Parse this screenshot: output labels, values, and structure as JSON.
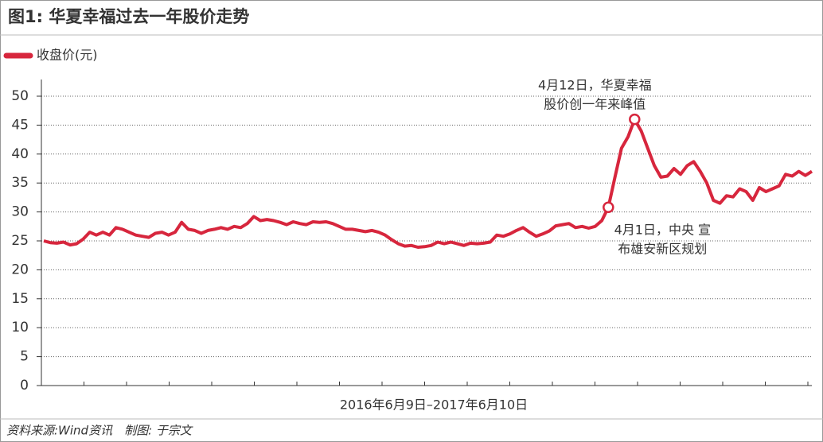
{
  "chart_data": {
    "type": "line",
    "title": "图1: 华夏幸福过去一年股价走势",
    "x_label": "2016年6月9日–2017年6月10日",
    "source": "资料来源:Wind资讯　制图: 于宗文",
    "series": [
      {
        "name": "收盘价(元)",
        "color": "#d7263d",
        "values": [
          25,
          24.7,
          24.6,
          24.8,
          24.3,
          24.5,
          25.3,
          26.5,
          26,
          26.5,
          26,
          27.3,
          27,
          26.5,
          26,
          25.8,
          25.6,
          26.3,
          26.5,
          26,
          26.5,
          28.2,
          27,
          26.8,
          26.3,
          26.8,
          27,
          27.3,
          27,
          27.5,
          27.3,
          28,
          29.2,
          28.5,
          28.7,
          28.5,
          28.2,
          27.8,
          28.3,
          28,
          27.8,
          28.3,
          28.2,
          28.3,
          28,
          27.5,
          27,
          27,
          26.8,
          26.6,
          26.8,
          26.5,
          26,
          25.2,
          24.5,
          24.1,
          24.2,
          23.9,
          24,
          24.2,
          24.8,
          24.5,
          24.8,
          24.5,
          24.2,
          24.6,
          24.5,
          24.6,
          24.8,
          26,
          25.8,
          26.2,
          26.8,
          27.3,
          26.5,
          25.8,
          26.2,
          26.7,
          27.6,
          27.8,
          28,
          27.3,
          27.5,
          27.2,
          27.5,
          28.5,
          30.8,
          36,
          41,
          43,
          46,
          44,
          41,
          38,
          36,
          36.2,
          37.5,
          36.5,
          38,
          38.7,
          37,
          35,
          32,
          31.5,
          32.8,
          32.6,
          34,
          33.5,
          32,
          34.2,
          33.5,
          34,
          34.5,
          36.5,
          36.2,
          37,
          36.3,
          37
        ]
      }
    ],
    "annotations": [
      {
        "text": [
          "4月12日，华夏幸福",
          "股价创一年来峰值"
        ]
      },
      {
        "text": [
          "4月1日，中央 宣",
          "布雄安新区规划"
        ]
      }
    ],
    "ylim": [
      0,
      50
    ],
    "yticks": [
      0,
      5,
      10,
      15,
      20,
      25,
      30,
      35,
      40,
      45,
      50
    ],
    "grid": true
  }
}
